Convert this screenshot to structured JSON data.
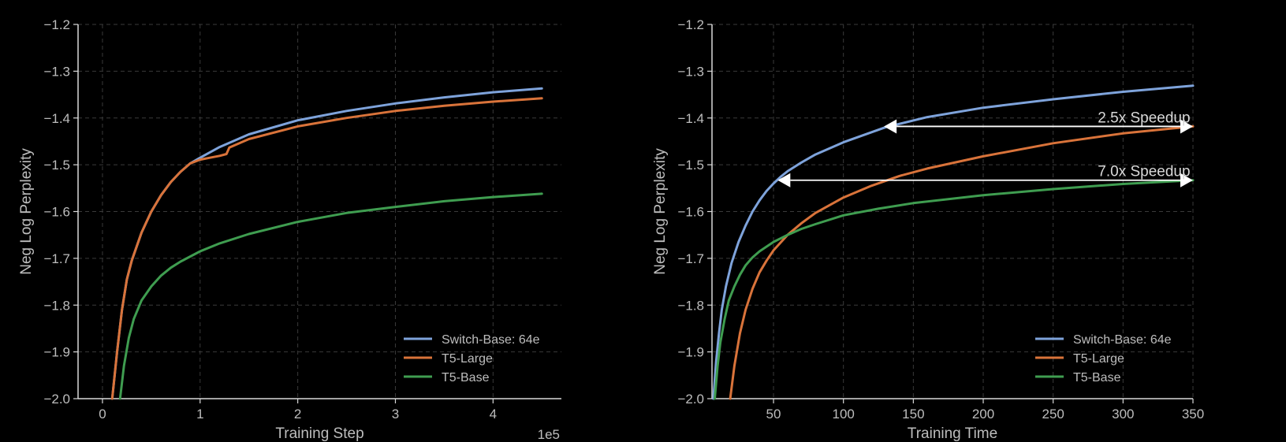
{
  "figure": {
    "background": "#000000",
    "axis_color": "#d9d9d9",
    "grid_color": "#3a3a3a",
    "text_color": "#bdbdbd"
  },
  "chart_data": [
    {
      "type": "line",
      "xlabel": "Training Step",
      "ylabel": "Neg Log Perplexity",
      "x_offset_text": "1e5",
      "xlim": [
        -0.25,
        4.7
      ],
      "ylim": [
        -2.0,
        -1.2
      ],
      "x_ticks": [
        0,
        1,
        2,
        3,
        4
      ],
      "x_tick_labels": [
        "0",
        "1",
        "2",
        "3",
        "4"
      ],
      "y_ticks": [
        -2.0,
        -1.9,
        -1.8,
        -1.7,
        -1.6,
        -1.5,
        -1.4,
        -1.3,
        -1.2
      ],
      "y_tick_labels": [
        "−2.0",
        "−1.9",
        "−1.8",
        "−1.7",
        "−1.6",
        "−1.5",
        "−1.4",
        "−1.3",
        "−1.2"
      ],
      "grid": true,
      "legend_position": "bottom-right",
      "series": [
        {
          "name": "Switch-Base: 64e",
          "color": "#7ea3db",
          "x": [
            0.1,
            0.15,
            0.2,
            0.25,
            0.3,
            0.4,
            0.5,
            0.6,
            0.7,
            0.8,
            0.9,
            1.0,
            1.2,
            1.5,
            2.0,
            2.5,
            3.0,
            3.5,
            4.0,
            4.5
          ],
          "y": [
            -2.0,
            -1.9,
            -1.81,
            -1.745,
            -1.705,
            -1.645,
            -1.6,
            -1.565,
            -1.537,
            -1.515,
            -1.497,
            -1.485,
            -1.462,
            -1.435,
            -1.405,
            -1.385,
            -1.369,
            -1.356,
            -1.345,
            -1.337
          ]
        },
        {
          "name": "T5-Large",
          "color": "#d9733a",
          "x": [
            0.1,
            0.15,
            0.2,
            0.25,
            0.3,
            0.4,
            0.5,
            0.6,
            0.7,
            0.8,
            0.9,
            1.0,
            1.1,
            1.2,
            1.27,
            1.3,
            1.5,
            2.0,
            2.5,
            3.0,
            3.5,
            4.0,
            4.5
          ],
          "y": [
            -2.0,
            -1.9,
            -1.81,
            -1.745,
            -1.705,
            -1.645,
            -1.6,
            -1.565,
            -1.537,
            -1.515,
            -1.497,
            -1.489,
            -1.485,
            -1.481,
            -1.477,
            -1.463,
            -1.445,
            -1.418,
            -1.4,
            -1.385,
            -1.374,
            -1.365,
            -1.358
          ]
        },
        {
          "name": "T5-Base",
          "color": "#3f9d50",
          "x": [
            0.18,
            0.22,
            0.27,
            0.32,
            0.4,
            0.5,
            0.6,
            0.7,
            0.8,
            1.0,
            1.2,
            1.5,
            2.0,
            2.5,
            3.0,
            3.5,
            4.0,
            4.5
          ],
          "y": [
            -2.0,
            -1.93,
            -1.87,
            -1.83,
            -1.79,
            -1.76,
            -1.737,
            -1.72,
            -1.707,
            -1.685,
            -1.668,
            -1.648,
            -1.622,
            -1.603,
            -1.59,
            -1.578,
            -1.569,
            -1.562
          ]
        }
      ]
    },
    {
      "type": "line",
      "xlabel": "Training Time",
      "ylabel": "Neg Log Perplexity",
      "xlim": [
        6,
        350
      ],
      "ylim": [
        -2.0,
        -1.2
      ],
      "x_ticks": [
        50,
        100,
        150,
        200,
        250,
        300,
        350
      ],
      "x_tick_labels": [
        "50",
        "100",
        "150",
        "200",
        "250",
        "300",
        "350"
      ],
      "y_ticks": [
        -2.0,
        -1.9,
        -1.8,
        -1.7,
        -1.6,
        -1.5,
        -1.4,
        -1.3,
        -1.2
      ],
      "y_tick_labels": [
        "−2.0",
        "−1.9",
        "−1.8",
        "−1.7",
        "−1.6",
        "−1.5",
        "−1.4",
        "−1.3",
        "−1.2"
      ],
      "grid": true,
      "legend_position": "bottom-right",
      "series": [
        {
          "name": "Switch-Base: 64e",
          "color": "#7ea3db",
          "x": [
            7,
            9,
            11,
            13,
            16,
            20,
            25,
            30,
            35,
            40,
            45,
            50,
            55,
            60,
            70,
            80,
            100,
            130,
            160,
            200,
            250,
            300,
            350
          ],
          "y": [
            -2.0,
            -1.92,
            -1.86,
            -1.81,
            -1.76,
            -1.71,
            -1.665,
            -1.63,
            -1.6,
            -1.576,
            -1.556,
            -1.54,
            -1.526,
            -1.514,
            -1.495,
            -1.478,
            -1.452,
            -1.42,
            -1.398,
            -1.378,
            -1.36,
            -1.344,
            -1.331
          ]
        },
        {
          "name": "T5-Large",
          "color": "#d9733a",
          "x": [
            19,
            22,
            26,
            30,
            35,
            40,
            45,
            50,
            60,
            70,
            80,
            100,
            120,
            140,
            160,
            200,
            250,
            300,
            350
          ],
          "y": [
            -2.0,
            -1.93,
            -1.86,
            -1.81,
            -1.765,
            -1.73,
            -1.705,
            -1.683,
            -1.65,
            -1.625,
            -1.603,
            -1.57,
            -1.545,
            -1.524,
            -1.508,
            -1.482,
            -1.454,
            -1.433,
            -1.418
          ]
        },
        {
          "name": "T5-Base",
          "color": "#3f9d50",
          "x": [
            8,
            10,
            12,
            15,
            18,
            22,
            26,
            30,
            35,
            40,
            50,
            60,
            70,
            80,
            100,
            125,
            150,
            200,
            250,
            300,
            350
          ],
          "y": [
            -2.0,
            -1.93,
            -1.88,
            -1.83,
            -1.79,
            -1.76,
            -1.735,
            -1.715,
            -1.698,
            -1.685,
            -1.665,
            -1.65,
            -1.637,
            -1.627,
            -1.608,
            -1.594,
            -1.582,
            -1.565,
            -1.552,
            -1.541,
            -1.533
          ]
        }
      ],
      "annotations": [
        {
          "text": "2.5x Speedup",
          "x_start": 129,
          "x_end": 350,
          "y": -1.418,
          "text_x": 315
        },
        {
          "text": "7.0x Speedup",
          "x_start": 53,
          "x_end": 350,
          "y": -1.533,
          "text_x": 315
        }
      ]
    }
  ]
}
